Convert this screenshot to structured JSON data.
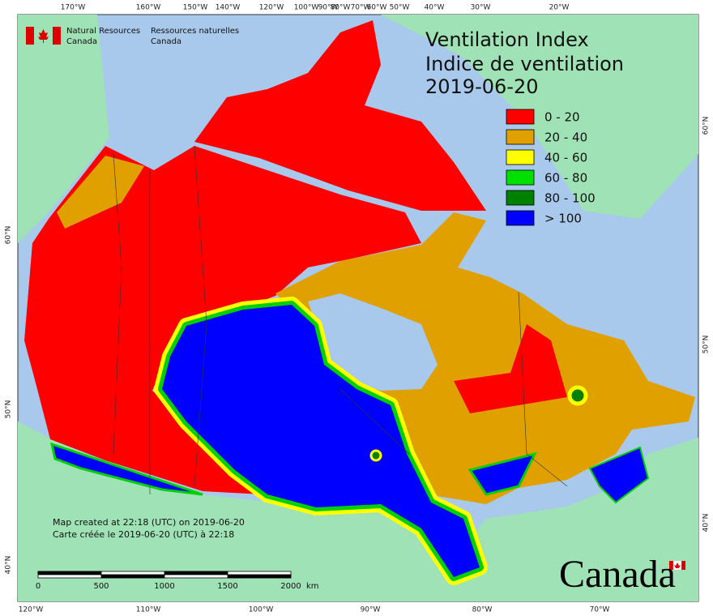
{
  "map": {
    "title_lines": [
      "Ventilation Index",
      "Indice de ventilation",
      "2019-06-20"
    ],
    "legend": [
      {
        "label": "0 - 20",
        "color": "#ff0000"
      },
      {
        "label": "20 - 40",
        "color": "#e0a000"
      },
      {
        "label": "40 - 60",
        "color": "#ffff00"
      },
      {
        "label": "60 - 80",
        "color": "#00e000"
      },
      {
        "label": "80 - 100",
        "color": "#008000"
      },
      {
        "label": "> 100",
        "color": "#0000ff"
      }
    ],
    "agency": {
      "english": [
        "Natural Resources",
        "Canada"
      ],
      "french": [
        "Ressources naturelles",
        "Canada"
      ]
    },
    "notes": [
      "Map created at 22:18 (UTC) on 2019-06-20",
      "Carte créée le 2019-06-20 (UTC) à 22:18"
    ],
    "scale_bar": {
      "labels": [
        "0",
        "500",
        "1000",
        "1500",
        "2000"
      ],
      "unit": "km"
    },
    "wordmark": "Canada",
    "graticule": {
      "top": [
        "170°W",
        "160°W",
        "150°W",
        "140°W",
        "120°W",
        "100°W",
        "90°W",
        "80°W",
        "70°W",
        "60°W",
        "50°W",
        "40°W",
        "30°W",
        "20°W"
      ],
      "bottom": [
        "120°W",
        "110°W",
        "100°W",
        "90°W",
        "80°W",
        "70°W"
      ],
      "left": [
        "60°N",
        "50°N",
        "40°N"
      ],
      "right": [
        "60°N",
        "50°N",
        "40°N"
      ]
    }
  }
}
